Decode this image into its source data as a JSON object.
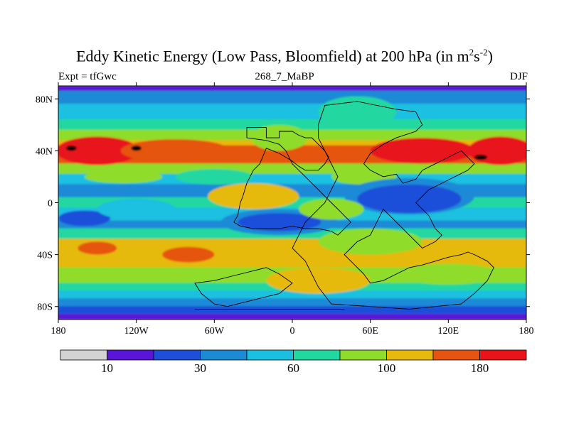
{
  "chart_data": {
    "type": "heatmap",
    "title_main": "Eddy Kinetic Energy (Low Pass, Bloomfield) at 200 hPa (in m",
    "title_sup1": "2",
    "title_mid": "s",
    "title_sup2": "-2",
    "title_end": ")",
    "left_label": "Expt = tfGwc",
    "center_label": "268_7_MaBP",
    "right_label": "DJF",
    "x_range": [
      -180,
      180
    ],
    "y_range": [
      -90,
      90
    ],
    "x_ticks": [
      {
        "value": -180,
        "label": "180"
      },
      {
        "value": -120,
        "label": "120W"
      },
      {
        "value": -60,
        "label": "60W"
      },
      {
        "value": 0,
        "label": "0"
      },
      {
        "value": 60,
        "label": "60E"
      },
      {
        "value": 120,
        "label": "120E"
      },
      {
        "value": 180,
        "label": "180"
      }
    ],
    "y_ticks": [
      {
        "value": 80,
        "label": "80N"
      },
      {
        "value": 40,
        "label": "40N"
      },
      {
        "value": 0,
        "label": "0"
      },
      {
        "value": -40,
        "label": "40S"
      },
      {
        "value": -80,
        "label": "80S"
      }
    ],
    "levels": [
      10,
      20,
      30,
      45,
      60,
      80,
      100,
      125,
      150,
      180
    ],
    "colors": [
      "#d3d3d3",
      "#5a16d6",
      "#1e4fd9",
      "#1d8ad6",
      "#1bc0e0",
      "#21d8a0",
      "#8fdc2a",
      "#e6b90c",
      "#e65410",
      "#e8141a"
    ],
    "colorbar_labels": [
      {
        "index": 1,
        "label": "10"
      },
      {
        "index": 3,
        "label": "30"
      },
      {
        "index": 5,
        "label": "60"
      },
      {
        "index": 7,
        "label": "100"
      },
      {
        "index": 9,
        "label": "180"
      }
    ],
    "zonal_bands": [
      {
        "lat_min": 86,
        "lat_max": 90,
        "level": 1
      },
      {
        "lat_min": 76,
        "lat_max": 86,
        "level": 3
      },
      {
        "lat_min": 64,
        "lat_max": 76,
        "level": 4
      },
      {
        "lat_min": 56,
        "lat_max": 64,
        "level": 5
      },
      {
        "lat_min": 48,
        "lat_max": 56,
        "level": 6
      },
      {
        "lat_min": 44,
        "lat_max": 48,
        "level": 7
      },
      {
        "lat_min": 30,
        "lat_max": 44,
        "level": 8
      },
      {
        "lat_min": 22,
        "lat_max": 30,
        "level": 6
      },
      {
        "lat_min": 14,
        "lat_max": 22,
        "level": 4
      },
      {
        "lat_min": 4,
        "lat_max": 14,
        "level": 3
      },
      {
        "lat_min": -4,
        "lat_max": 4,
        "level": 5
      },
      {
        "lat_min": -14,
        "lat_max": -4,
        "level": 4
      },
      {
        "lat_min": -20,
        "lat_max": -14,
        "level": 3
      },
      {
        "lat_min": -28,
        "lat_max": -20,
        "level": 5
      },
      {
        "lat_min": -50,
        "lat_max": -28,
        "level": 7
      },
      {
        "lat_min": -62,
        "lat_max": -50,
        "level": 6
      },
      {
        "lat_min": -68,
        "lat_max": -62,
        "level": 5
      },
      {
        "lat_min": -74,
        "lat_max": -68,
        "level": 4
      },
      {
        "lat_min": -80,
        "lat_max": -74,
        "level": 3
      },
      {
        "lat_min": -86,
        "lat_max": -80,
        "level": 2
      },
      {
        "lat_min": -90,
        "lat_max": -86,
        "level": 1
      }
    ],
    "features": [
      {
        "lon": -150,
        "lat": 40,
        "rx": 32,
        "ry": 11,
        "level": 9
      },
      {
        "lon": -90,
        "lat": 40,
        "rx": 42,
        "ry": 9,
        "level": 8
      },
      {
        "lon": -10,
        "lat": 50,
        "rx": 22,
        "ry": 10,
        "level": 6
      },
      {
        "lon": 50,
        "lat": 70,
        "rx": 30,
        "ry": 12,
        "level": 5
      },
      {
        "lon": 100,
        "lat": 40,
        "rx": 40,
        "ry": 10,
        "level": 9
      },
      {
        "lon": 160,
        "lat": 40,
        "rx": 25,
        "ry": 11,
        "level": 9
      },
      {
        "lon": -170,
        "lat": 42,
        "rx": 4,
        "ry": 2,
        "level": 10
      },
      {
        "lon": -120,
        "lat": 42,
        "rx": 4,
        "ry": 2,
        "level": 10
      },
      {
        "lon": 145,
        "lat": 35,
        "rx": 5,
        "ry": 2,
        "level": 10
      },
      {
        "lon": -60,
        "lat": 20,
        "rx": 30,
        "ry": 6,
        "level": 5
      },
      {
        "lon": 55,
        "lat": 20,
        "rx": 25,
        "ry": 6,
        "level": 6
      },
      {
        "lon": 90,
        "lat": 5,
        "rx": 50,
        "ry": 14,
        "level": 3
      },
      {
        "lon": 90,
        "lat": 3,
        "rx": 40,
        "ry": 11,
        "level": 2
      },
      {
        "lon": -10,
        "lat": -15,
        "rx": 45,
        "ry": 10,
        "level": 3
      },
      {
        "lon": -10,
        "lat": -15,
        "rx": 32,
        "ry": 7,
        "level": 2
      },
      {
        "lon": -160,
        "lat": -12,
        "rx": 20,
        "ry": 6,
        "level": 2
      },
      {
        "lon": -120,
        "lat": -5,
        "rx": 30,
        "ry": 8,
        "level": 4
      },
      {
        "lon": -30,
        "lat": 5,
        "rx": 35,
        "ry": 10,
        "level": 7
      },
      {
        "lon": 30,
        "lat": -5,
        "rx": 25,
        "ry": 8,
        "level": 6
      },
      {
        "lon": -150,
        "lat": -35,
        "rx": 15,
        "ry": 5,
        "level": 8
      },
      {
        "lon": -80,
        "lat": -40,
        "rx": 20,
        "ry": 6,
        "level": 8
      },
      {
        "lon": 60,
        "lat": -30,
        "rx": 40,
        "ry": 10,
        "level": 6
      },
      {
        "lon": 20,
        "lat": -60,
        "rx": 40,
        "ry": 10,
        "level": 7
      },
      {
        "lon": 120,
        "lat": -55,
        "rx": 40,
        "ry": 8,
        "level": 6
      },
      {
        "lon": -130,
        "lat": 20,
        "rx": 30,
        "ry": 5,
        "level": 6
      }
    ],
    "continent_outlines": [
      [
        [
          -35,
          50
        ],
        [
          -35,
          58
        ],
        [
          -20,
          58
        ],
        [
          -20,
          50
        ],
        [
          -10,
          50
        ],
        [
          -10,
          55
        ],
        [
          0,
          55
        ],
        [
          5,
          52
        ],
        [
          10,
          50
        ],
        [
          15,
          50
        ],
        [
          20,
          45
        ],
        [
          25,
          40
        ],
        [
          28,
          35
        ],
        [
          25,
          30
        ],
        [
          20,
          25
        ],
        [
          10,
          25
        ],
        [
          5,
          28
        ],
        [
          0,
          32
        ],
        [
          -5,
          35
        ],
        [
          -10,
          38
        ],
        [
          -15,
          40
        ],
        [
          -20,
          42
        ],
        [
          -25,
          30
        ],
        [
          -30,
          25
        ],
        [
          -35,
          15
        ],
        [
          -38,
          5
        ],
        [
          -40,
          0
        ],
        [
          -42,
          -10
        ],
        [
          -45,
          -15
        ],
        [
          -40,
          -18
        ],
        [
          -30,
          -20
        ],
        [
          -20,
          -20
        ],
        [
          -10,
          -20
        ],
        [
          0,
          -18
        ],
        [
          10,
          -20
        ],
        [
          20,
          -20
        ],
        [
          30,
          -22
        ],
        [
          35,
          -25
        ],
        [
          40,
          -20
        ],
        [
          45,
          -15
        ],
        [
          40,
          -10
        ],
        [
          35,
          -5
        ],
        [
          30,
          0
        ],
        [
          25,
          5
        ],
        [
          20,
          10
        ],
        [
          15,
          15
        ],
        [
          10,
          20
        ],
        [
          5,
          25
        ],
        [
          0,
          30
        ],
        [
          -5,
          40
        ],
        [
          -10,
          45
        ],
        [
          -20,
          48
        ],
        [
          -35,
          50
        ]
      ],
      [
        [
          20,
          60
        ],
        [
          25,
          75
        ],
        [
          50,
          78
        ],
        [
          80,
          72
        ],
        [
          95,
          70
        ],
        [
          100,
          60
        ],
        [
          95,
          55
        ],
        [
          80,
          50
        ],
        [
          70,
          45
        ],
        [
          60,
          38
        ],
        [
          55,
          30
        ],
        [
          60,
          25
        ],
        [
          70,
          20
        ],
        [
          80,
          22
        ],
        [
          85,
          15
        ],
        [
          95,
          18
        ],
        [
          100,
          25
        ],
        [
          110,
          30
        ],
        [
          120,
          35
        ],
        [
          130,
          40
        ],
        [
          140,
          30
        ],
        [
          135,
          25
        ],
        [
          125,
          20
        ],
        [
          115,
          15
        ],
        [
          105,
          10
        ],
        [
          100,
          5
        ],
        [
          95,
          0
        ],
        [
          100,
          -5
        ],
        [
          105,
          -10
        ],
        [
          110,
          -20
        ],
        [
          115,
          -25
        ],
        [
          110,
          -30
        ],
        [
          100,
          -35
        ],
        [
          95,
          -30
        ],
        [
          90,
          -25
        ],
        [
          85,
          -20
        ],
        [
          80,
          -15
        ],
        [
          75,
          -10
        ],
        [
          70,
          -5
        ],
        [
          65,
          -15
        ],
        [
          60,
          -25
        ],
        [
          50,
          -30
        ],
        [
          45,
          -35
        ],
        [
          40,
          -40
        ],
        [
          45,
          -45
        ],
        [
          50,
          -50
        ],
        [
          55,
          -55
        ],
        [
          60,
          -62
        ],
        [
          70,
          -60
        ],
        [
          80,
          -55
        ],
        [
          90,
          -50
        ],
        [
          100,
          -48
        ],
        [
          110,
          -45
        ],
        [
          120,
          -42
        ],
        [
          130,
          -40
        ],
        [
          135,
          -38
        ],
        [
          140,
          -40
        ],
        [
          150,
          -45
        ],
        [
          155,
          -50
        ],
        [
          150,
          -60
        ],
        [
          140,
          -70
        ],
        [
          130,
          -78
        ],
        [
          110,
          -80
        ],
        [
          90,
          -82
        ],
        [
          60,
          -80
        ],
        [
          30,
          -78
        ],
        [
          20,
          -65
        ],
        [
          15,
          -55
        ],
        [
          10,
          -45
        ],
        [
          5,
          -40
        ],
        [
          0,
          -35
        ],
        [
          5,
          -25
        ],
        [
          10,
          -15
        ],
        [
          15,
          -10
        ],
        [
          20,
          -5
        ],
        [
          25,
          0
        ],
        [
          30,
          10
        ],
        [
          35,
          20
        ],
        [
          30,
          30
        ],
        [
          25,
          40
        ],
        [
          20,
          50
        ],
        [
          20,
          60
        ]
      ],
      [
        [
          -60,
          -60
        ],
        [
          -40,
          -55
        ],
        [
          -20,
          -50
        ],
        [
          -10,
          -55
        ],
        [
          0,
          -62
        ],
        [
          -10,
          -70
        ],
        [
          -30,
          -75
        ],
        [
          -50,
          -80
        ],
        [
          -60,
          -78
        ],
        [
          -70,
          -70
        ],
        [
          -75,
          -62
        ],
        [
          -60,
          -60
        ]
      ],
      [
        [
          -75,
          -82
        ],
        [
          40,
          -82
        ]
      ]
    ]
  }
}
